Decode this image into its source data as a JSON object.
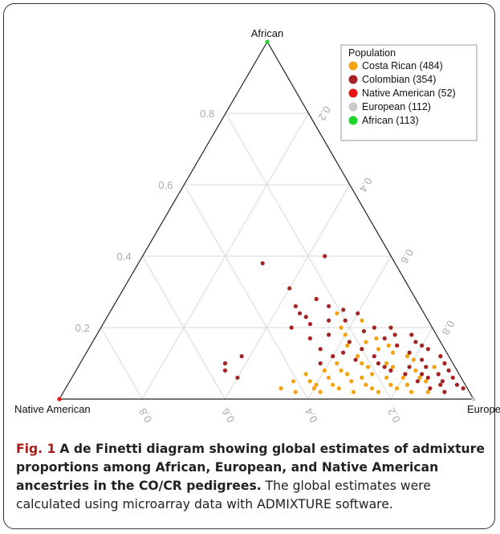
{
  "chart_data": {
    "type": "scatter",
    "subtype": "ternary",
    "vertices": {
      "top": "African",
      "left": "Native American",
      "right": "European"
    },
    "ticks": [
      "0.2",
      "0.4",
      "0.6",
      "0.8"
    ],
    "grid": true,
    "legend": {
      "title": "Population",
      "placement": "top-right",
      "entries": [
        {
          "label": "Costa Rican (484)",
          "color": "#f5a20a"
        },
        {
          "label": "Colombian (354)",
          "color": "#a52222"
        },
        {
          "label": "Native American (52)",
          "color": "#e81313"
        },
        {
          "label": "European (112)",
          "color": "#c8c8c8"
        },
        {
          "label": "African (113)",
          "color": "#22d62a"
        }
      ]
    },
    "series": [
      {
        "name": "Costa Rican (484)",
        "color": "#f5a20a",
        "description": "African, European, Native American proportions",
        "points": [
          [
            0.02,
            0.56,
            0.42
          ],
          [
            0.03,
            0.6,
            0.37
          ],
          [
            0.04,
            0.64,
            0.32
          ],
          [
            0.02,
            0.7,
            0.28
          ],
          [
            0.03,
            0.74,
            0.23
          ],
          [
            0.05,
            0.68,
            0.27
          ],
          [
            0.06,
            0.62,
            0.32
          ],
          [
            0.08,
            0.6,
            0.32
          ],
          [
            0.1,
            0.62,
            0.28
          ],
          [
            0.07,
            0.72,
            0.21
          ],
          [
            0.04,
            0.78,
            0.18
          ],
          [
            0.06,
            0.8,
            0.14
          ],
          [
            0.09,
            0.76,
            0.15
          ],
          [
            0.12,
            0.66,
            0.22
          ],
          [
            0.15,
            0.62,
            0.23
          ],
          [
            0.18,
            0.6,
            0.22
          ],
          [
            0.14,
            0.7,
            0.16
          ],
          [
            0.11,
            0.8,
            0.09
          ],
          [
            0.05,
            0.86,
            0.09
          ],
          [
            0.02,
            0.84,
            0.14
          ],
          [
            0.03,
            0.66,
            0.31
          ],
          [
            0.05,
            0.58,
            0.37
          ],
          [
            0.07,
            0.66,
            0.27
          ],
          [
            0.09,
            0.7,
            0.21
          ],
          [
            0.03,
            0.8,
            0.17
          ],
          [
            0.02,
            0.88,
            0.1
          ],
          [
            0.04,
            0.72,
            0.24
          ],
          [
            0.06,
            0.76,
            0.18
          ],
          [
            0.08,
            0.82,
            0.1
          ],
          [
            0.1,
            0.74,
            0.16
          ],
          [
            0.13,
            0.74,
            0.13
          ],
          [
            0.16,
            0.66,
            0.18
          ],
          [
            0.2,
            0.58,
            0.22
          ],
          [
            0.24,
            0.55,
            0.21
          ],
          [
            0.22,
            0.62,
            0.16
          ],
          [
            0.02,
            0.62,
            0.36
          ],
          [
            0.04,
            0.6,
            0.36
          ],
          [
            0.06,
            0.7,
            0.24
          ],
          [
            0.08,
            0.64,
            0.28
          ],
          [
            0.1,
            0.68,
            0.22
          ],
          [
            0.03,
            0.52,
            0.45
          ],
          [
            0.05,
            0.54,
            0.41
          ],
          [
            0.07,
            0.56,
            0.37
          ],
          [
            0.02,
            0.76,
            0.22
          ],
          [
            0.04,
            0.82,
            0.14
          ],
          [
            0.06,
            0.84,
            0.1
          ],
          [
            0.09,
            0.86,
            0.05
          ],
          [
            0.12,
            0.78,
            0.1
          ],
          [
            0.15,
            0.72,
            0.13
          ],
          [
            0.17,
            0.68,
            0.15
          ]
        ]
      },
      {
        "name": "Colombian (354)",
        "color": "#a52222",
        "description": "African, European, Native American proportions",
        "points": [
          [
            0.38,
            0.3,
            0.32
          ],
          [
            0.4,
            0.44,
            0.16
          ],
          [
            0.31,
            0.4,
            0.29
          ],
          [
            0.28,
            0.48,
            0.24
          ],
          [
            0.26,
            0.52,
            0.22
          ],
          [
            0.24,
            0.6,
            0.16
          ],
          [
            0.22,
            0.54,
            0.24
          ],
          [
            0.2,
            0.66,
            0.14
          ],
          [
            0.18,
            0.72,
            0.1
          ],
          [
            0.16,
            0.78,
            0.06
          ],
          [
            0.14,
            0.82,
            0.04
          ],
          [
            0.12,
            0.86,
            0.02
          ],
          [
            0.1,
            0.88,
            0.02
          ],
          [
            0.08,
            0.9,
            0.02
          ],
          [
            0.06,
            0.92,
            0.02
          ],
          [
            0.12,
            0.6,
            0.28
          ],
          [
            0.1,
            0.58,
            0.32
          ],
          [
            0.14,
            0.56,
            0.3
          ],
          [
            0.18,
            0.56,
            0.26
          ],
          [
            0.22,
            0.58,
            0.2
          ],
          [
            0.19,
            0.64,
            0.17
          ],
          [
            0.17,
            0.7,
            0.13
          ],
          [
            0.15,
            0.74,
            0.11
          ],
          [
            0.13,
            0.78,
            0.09
          ],
          [
            0.11,
            0.82,
            0.07
          ],
          [
            0.09,
            0.84,
            0.07
          ],
          [
            0.07,
            0.88,
            0.05
          ],
          [
            0.05,
            0.9,
            0.05
          ],
          [
            0.04,
            0.94,
            0.02
          ],
          [
            0.03,
            0.96,
            0.01
          ],
          [
            0.1,
            0.35,
            0.55
          ],
          [
            0.08,
            0.36,
            0.56
          ],
          [
            0.06,
            0.4,
            0.54
          ],
          [
            0.12,
            0.38,
            0.5
          ],
          [
            0.24,
            0.46,
            0.3
          ],
          [
            0.21,
            0.5,
            0.29
          ],
          [
            0.17,
            0.52,
            0.31
          ],
          [
            0.26,
            0.44,
            0.3
          ],
          [
            0.23,
            0.48,
            0.29
          ],
          [
            0.2,
            0.46,
            0.34
          ],
          [
            0.09,
            0.74,
            0.17
          ],
          [
            0.07,
            0.8,
            0.13
          ],
          [
            0.05,
            0.84,
            0.11
          ],
          [
            0.08,
            0.76,
            0.16
          ],
          [
            0.1,
            0.72,
            0.18
          ],
          [
            0.12,
            0.7,
            0.18
          ],
          [
            0.14,
            0.66,
            0.2
          ],
          [
            0.16,
            0.62,
            0.22
          ],
          [
            0.11,
            0.66,
            0.23
          ],
          [
            0.13,
            0.62,
            0.25
          ],
          [
            0.06,
            0.86,
            0.08
          ],
          [
            0.04,
            0.9,
            0.06
          ],
          [
            0.02,
            0.92,
            0.06
          ],
          [
            0.03,
            0.88,
            0.09
          ],
          [
            0.07,
            0.84,
            0.09
          ],
          [
            0.09,
            0.8,
            0.11
          ],
          [
            0.18,
            0.76,
            0.06
          ],
          [
            0.15,
            0.8,
            0.05
          ],
          [
            0.2,
            0.7,
            0.1
          ],
          [
            0.25,
            0.56,
            0.19
          ]
        ]
      },
      {
        "name": "Native American (52)",
        "color": "#e81313",
        "description": "African, European, Native American proportions",
        "points": [
          [
            0.0,
            0.0,
            1.0
          ]
        ]
      },
      {
        "name": "European (112)",
        "color": "#c8c8c8",
        "description": "African, European, Native American proportions",
        "points": [
          [
            0.0,
            1.0,
            0.0
          ]
        ]
      },
      {
        "name": "African (113)",
        "color": "#22d62a",
        "description": "African, European, Native American proportions",
        "points": [
          [
            1.0,
            0.0,
            0.0
          ]
        ]
      }
    ]
  },
  "caption": {
    "fig_label": "Fig. 1",
    "bold_text": "A de Finetti diagram showing global estimates of admixture proportions among African, European, and Native American ancestries in the CO/CR pedigrees.",
    "body_text": "The global estimates were calculated using microarray data with ADMIXTURE software."
  }
}
